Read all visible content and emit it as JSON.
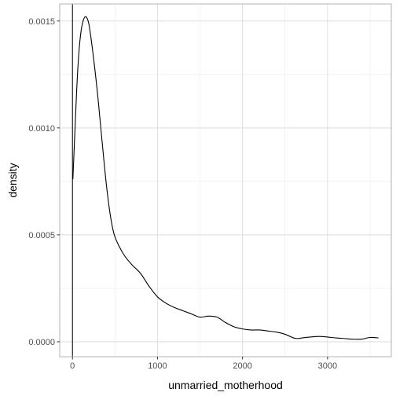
{
  "chart_data": {
    "type": "line",
    "xlabel": "unmarried_motherhood",
    "ylabel": "density",
    "xlim": [
      -150,
      3750
    ],
    "ylim": [
      -7e-05,
      0.00158
    ],
    "x_ticks": [
      0,
      1000,
      2000,
      3000
    ],
    "x_tick_labels": [
      "0",
      "1000",
      "2000",
      "3000"
    ],
    "y_ticks": [
      0,
      0.0005,
      0.001,
      0.0015
    ],
    "y_tick_labels": [
      "0.0000",
      "0.0005",
      "0.0010",
      "0.0015"
    ],
    "grid": true,
    "vline_x": 0,
    "series": [
      {
        "x": [
          5,
          25,
          50,
          75,
          100,
          125,
          150,
          175,
          200,
          250,
          300,
          350,
          400,
          450,
          500,
          600,
          700,
          800,
          900,
          1000,
          1100,
          1200,
          1300,
          1400,
          1500,
          1600,
          1700,
          1800,
          1900,
          2000,
          2100,
          2200,
          2300,
          2400,
          2500,
          2600,
          2650,
          2700,
          2800,
          2900,
          3000,
          3100,
          3200,
          3300,
          3400,
          3500,
          3600
        ],
        "y": [
          0.00076,
          0.00095,
          0.00118,
          0.00135,
          0.00145,
          0.0015,
          0.00152,
          0.00151,
          0.00147,
          0.00132,
          0.00114,
          0.00093,
          0.00073,
          0.00058,
          0.00049,
          0.00041,
          0.00036,
          0.00032,
          0.00026,
          0.00021,
          0.00018,
          0.00016,
          0.000145,
          0.00013,
          0.000115,
          0.00012,
          0.000115,
          9e-05,
          7e-05,
          6e-05,
          5.5e-05,
          5.5e-05,
          5e-05,
          4.5e-05,
          3.5e-05,
          1.8e-05,
          1.5e-05,
          1.8e-05,
          2.2e-05,
          2.5e-05,
          2.2e-05,
          1.8e-05,
          1.5e-05,
          1.2e-05,
          1.2e-05,
          2e-05,
          1.8e-05
        ]
      }
    ]
  }
}
